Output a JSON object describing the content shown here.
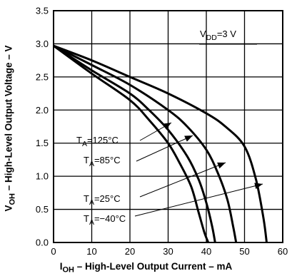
{
  "chart_data": {
    "type": "line",
    "title": "",
    "xlabel": {
      "main": "I",
      "sub": "OH",
      "rest": " – High-Level Output Current – mA"
    },
    "ylabel": {
      "main": "V",
      "sub": "OH",
      "rest": "  – High-Level Output Voltage – V"
    },
    "xlim": [
      0,
      60
    ],
    "ylim": [
      0,
      3.5
    ],
    "xticks": [
      "0",
      "10",
      "20",
      "30",
      "40",
      "50",
      "60"
    ],
    "yticks": [
      "0.0",
      "0.5",
      "1.0",
      "1.5",
      "2.0",
      "2.5",
      "3.0",
      "3.5"
    ],
    "grid": true,
    "annotation": {
      "main": "V",
      "sub": "DD",
      "rest": "=3 V"
    },
    "series": [
      {
        "name_main": "T",
        "name_sub": "A",
        "name_rest": "=125°C",
        "x": [
          0,
          10,
          20,
          25,
          30,
          33,
          36,
          38,
          39.5,
          40.5
        ],
        "y": [
          2.97,
          2.55,
          2.15,
          1.85,
          1.5,
          1.2,
          0.85,
          0.45,
          0.15,
          0.0
        ]
      },
      {
        "name_main": "T",
        "name_sub": "A",
        "name_rest": "=85°C",
        "x": [
          0,
          10,
          20,
          25,
          30,
          35,
          38,
          40,
          41.5,
          42.3
        ],
        "y": [
          2.97,
          2.6,
          2.25,
          2.0,
          1.7,
          1.3,
          0.95,
          0.6,
          0.25,
          0.0
        ]
      },
      {
        "name_main": "T",
        "name_sub": "A",
        "name_rest": "=25°C",
        "x": [
          0,
          10,
          20,
          30,
          35,
          40,
          43,
          45.5,
          47,
          47.8
        ],
        "y": [
          2.97,
          2.68,
          2.38,
          2.0,
          1.75,
          1.4,
          1.05,
          0.65,
          0.25,
          0.0
        ]
      },
      {
        "name_main": "T",
        "name_sub": "A",
        "name_rest": "=−40°C",
        "x": [
          0,
          10,
          20,
          30,
          40,
          45,
          50,
          53,
          55,
          55.8
        ],
        "y": [
          2.97,
          2.75,
          2.5,
          2.25,
          1.95,
          1.75,
          1.45,
          0.95,
          0.35,
          0.0
        ]
      }
    ]
  }
}
